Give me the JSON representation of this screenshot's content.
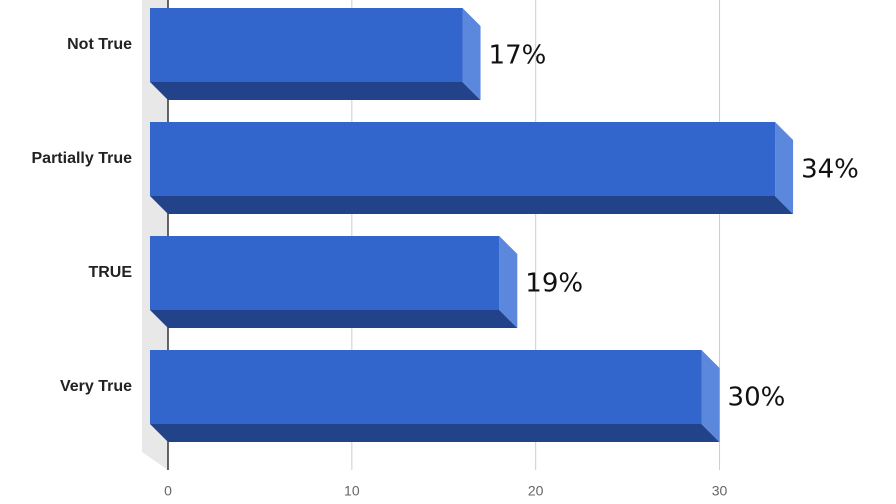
{
  "chart_data": {
    "type": "bar3d-horizontal",
    "categories": [
      "Not True",
      "Partially True",
      "TRUE",
      "Very True"
    ],
    "values": [
      17,
      34,
      19,
      30
    ],
    "value_labels": [
      "17%",
      "34%",
      "19%",
      "30%"
    ],
    "color": "#3366cc",
    "xlim": [
      0,
      39
    ],
    "xticks": [
      0,
      10,
      20,
      30
    ],
    "grid": true
  }
}
